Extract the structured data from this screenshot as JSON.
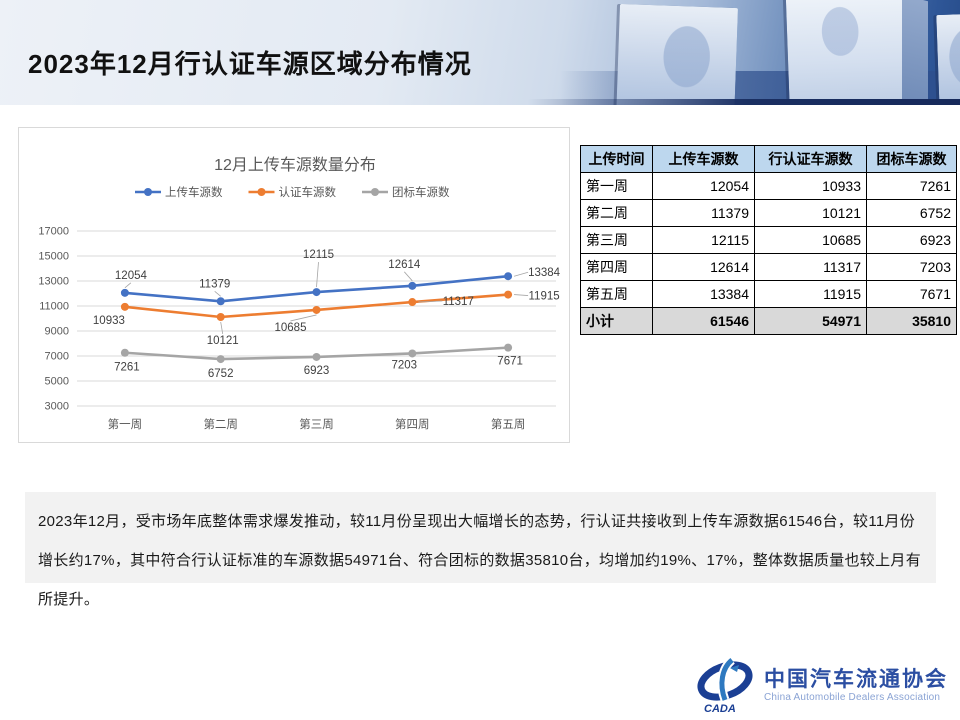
{
  "header": {
    "title": "2023年12月行认证车源区域分布情况"
  },
  "chart_data": {
    "type": "line",
    "title": "12月上传车源数量分布",
    "categories": [
      "第一周",
      "第二周",
      "第三周",
      "第四周",
      "第五周"
    ],
    "series": [
      {
        "name": "上传车源数",
        "color": "#4472c4",
        "values": [
          12054,
          11379,
          12115,
          12614,
          13384
        ]
      },
      {
        "name": "认证车源数",
        "color": "#ed7d31",
        "values": [
          10933,
          10121,
          10685,
          11317,
          11915
        ]
      },
      {
        "name": "团标车源数",
        "color": "#a5a5a5",
        "values": [
          7261,
          6752,
          6923,
          7203,
          7671
        ]
      }
    ],
    "ylim": [
      3000,
      17000
    ],
    "yticks": [
      17000,
      15000,
      13000,
      11000,
      9000,
      7000,
      5000,
      3000
    ],
    "legend_position": "top",
    "grid": true,
    "data_labels": true
  },
  "table": {
    "headers": [
      "上传时间",
      "上传车源数",
      "行认证车源数",
      "团标车源数"
    ],
    "rows": [
      [
        "第一周",
        "12054",
        "10933",
        "7261"
      ],
      [
        "第二周",
        "11379",
        "10121",
        "6752"
      ],
      [
        "第三周",
        "12115",
        "10685",
        "6923"
      ],
      [
        "第四周",
        "12614",
        "11317",
        "7203"
      ],
      [
        "第五周",
        "13384",
        "11915",
        "7671"
      ]
    ],
    "subtotal": [
      "小计",
      "61546",
      "54971",
      "35810"
    ]
  },
  "summary": {
    "text": "2023年12月，受市场年底整体需求爆发推动，较11月份呈现出大幅增长的态势，行认证共接收到上传车源数据61546台，较11月份增长约17%，其中符合行认证标准的车源数据54971台、符合团标的数据35810台，均增加约19%、17%，整体数据质量也较上月有所提升。"
  },
  "footer": {
    "logo_cn": "中国汽车流通协会",
    "logo_en": "China Automobile Dealers Association",
    "logo_abbr": "CADA"
  },
  "colors": {
    "series_blue": "#4472c4",
    "series_orange": "#ed7d31",
    "series_gray": "#a5a5a5",
    "table_header_bg": "#bdd7ee",
    "subtotal_bg": "#d9d9d9",
    "summary_bg": "#f2f2f2",
    "logo_blue": "#2b4ea2"
  }
}
